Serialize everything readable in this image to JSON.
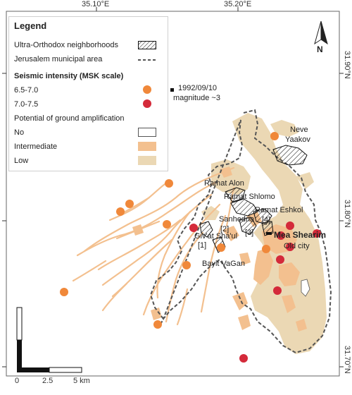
{
  "axes": {
    "lon_ticks": [
      "35.10°E",
      "35.20°E"
    ],
    "lat_ticks": [
      "31.90°N",
      "31.80°N",
      "31.70°N"
    ]
  },
  "legend": {
    "title": "Legend",
    "ultra_orthodox": "Ultra-Orthodox neighborhoods",
    "municipal": "Jerusalem municipal area",
    "seismic_heading": "Seismic intensity (MSK scale)",
    "intensity_low": "6.5-7.0",
    "intensity_high": "7.0-7.5",
    "amplification_heading": "Potential of ground amplification",
    "amp_no": "No",
    "amp_intermediate": "Intermediate",
    "amp_low": "Low"
  },
  "colors": {
    "intensity_low": "#f0883a",
    "intensity_high": "#d42a3a",
    "amp_intermediate": "#f3c08f",
    "amp_low": "#ebd8b4",
    "amp_no": "#ffffff"
  },
  "event": {
    "label_line1": "1992/09/10",
    "label_line2": "magnitude ~3"
  },
  "places": {
    "neve_yaakov_1": "Neve",
    "neve_yaakov_2": "Yaakov",
    "ramat_alon": "Ramat Alon",
    "ramat_shlomo": "Ramat Shlomo",
    "ramat_eshkol": "Ramat Eshkol",
    "label4": "[4]",
    "sanhedria": "Sanhedria",
    "label2": "[2]",
    "label3": "[3]",
    "mea_shearim": "Mea Shearim",
    "givat_shaul": "Giv'at Sha'ul",
    "label1": "[1]",
    "old_city": "Old city",
    "bayit_vagan": "Bayit VaGan"
  },
  "scale_bar": {
    "l0": "0",
    "l1": "2.5",
    "l2": "5 km"
  },
  "north_label": "N"
}
